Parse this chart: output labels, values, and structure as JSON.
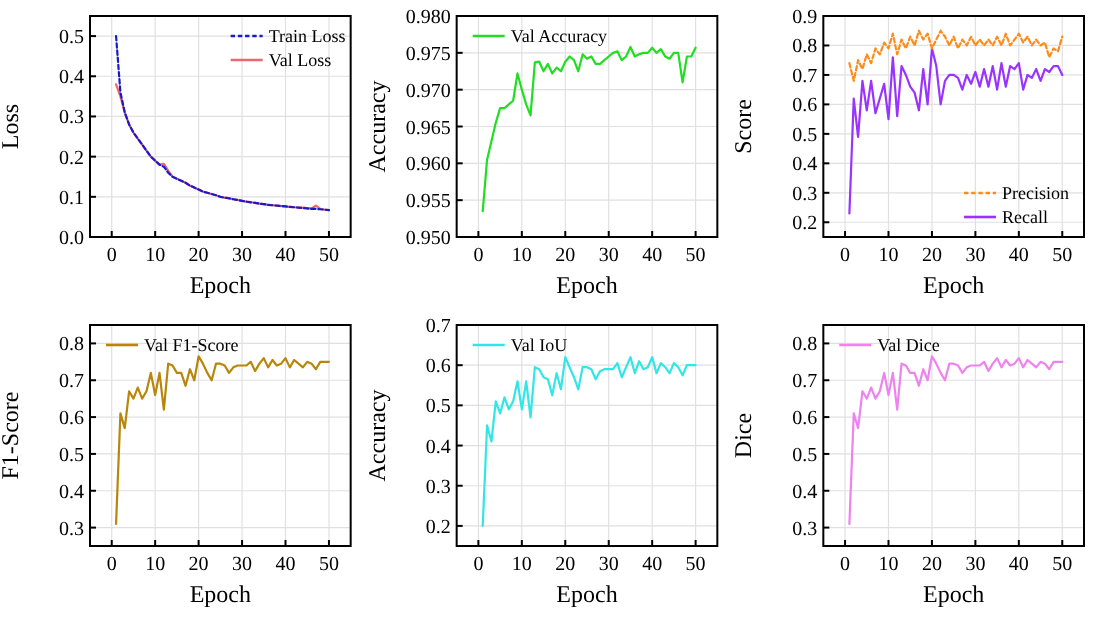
{
  "chart_data": [
    {
      "type": "line",
      "xlabel": "Epoch",
      "ylabel": "Loss",
      "x": [
        1,
        2,
        3,
        4,
        5,
        6,
        7,
        8,
        9,
        10,
        11,
        12,
        13,
        14,
        15,
        16,
        17,
        18,
        19,
        20,
        21,
        22,
        23,
        24,
        25,
        26,
        27,
        28,
        29,
        30,
        31,
        32,
        33,
        34,
        35,
        36,
        37,
        38,
        39,
        40,
        41,
        42,
        43,
        44,
        45,
        46,
        47,
        48,
        49,
        50
      ],
      "xlim": [
        -5,
        55
      ],
      "xticks": [
        0,
        10,
        20,
        30,
        40,
        50
      ],
      "ylim": [
        0,
        0.55
      ],
      "yticks": [
        {
          "value": 0,
          "label": "0.0"
        },
        0.1,
        0.2,
        0.3,
        0.4,
        0.5
      ],
      "grid": true,
      "legend": "top right",
      "series": [
        {
          "name": "Train Loss",
          "color": "#1a1acc",
          "line_style": "dashed",
          "values": [
            0.5,
            0.36,
            0.31,
            0.28,
            0.26,
            0.245,
            0.23,
            0.215,
            0.2,
            0.19,
            0.18,
            0.175,
            0.16,
            0.15,
            0.145,
            0.14,
            0.135,
            0.128,
            0.123,
            0.118,
            0.113,
            0.11,
            0.107,
            0.104,
            0.1,
            0.098,
            0.096,
            0.094,
            0.092,
            0.09,
            0.088,
            0.086,
            0.085,
            0.083,
            0.082,
            0.08,
            0.079,
            0.078,
            0.077,
            0.076,
            0.075,
            0.074,
            0.073,
            0.072,
            0.071,
            0.07,
            0.07,
            0.069,
            0.068,
            0.067
          ]
        },
        {
          "name": "Val Loss",
          "color": "#ee6670",
          "line_style": "solid",
          "values": [
            0.38,
            0.35,
            0.31,
            0.28,
            0.26,
            0.245,
            0.23,
            0.215,
            0.2,
            0.19,
            0.18,
            0.182,
            0.165,
            0.15,
            0.145,
            0.14,
            0.135,
            0.128,
            0.123,
            0.118,
            0.113,
            0.11,
            0.107,
            0.104,
            0.1,
            0.098,
            0.097,
            0.094,
            0.092,
            0.09,
            0.088,
            0.087,
            0.085,
            0.083,
            0.082,
            0.08,
            0.079,
            0.078,
            0.077,
            0.076,
            0.075,
            0.074,
            0.073,
            0.073,
            0.072,
            0.071,
            0.078,
            0.07,
            0.068,
            0.067
          ]
        }
      ]
    },
    {
      "type": "line",
      "xlabel": "Epoch",
      "ylabel": "Accuracy",
      "x": [
        1,
        2,
        3,
        4,
        5,
        6,
        7,
        8,
        9,
        10,
        11,
        12,
        13,
        14,
        15,
        16,
        17,
        18,
        19,
        20,
        21,
        22,
        23,
        24,
        25,
        26,
        27,
        28,
        29,
        30,
        31,
        32,
        33,
        34,
        35,
        36,
        37,
        38,
        39,
        40,
        41,
        42,
        43,
        44,
        45,
        46,
        47,
        48,
        49,
        50
      ],
      "xlim": [
        -5,
        55
      ],
      "xticks": [
        0,
        10,
        20,
        30,
        40,
        50
      ],
      "ylim": [
        0.95,
        0.98
      ],
      "yticks": [
        {
          "value": 0.95,
          "label": "0.950"
        },
        {
          "value": 0.955,
          "label": "0.955"
        },
        {
          "value": 0.96,
          "label": "0.960"
        },
        {
          "value": 0.965,
          "label": "0.965"
        },
        {
          "value": 0.97,
          "label": "0.970"
        },
        {
          "value": 0.975,
          "label": "0.975"
        },
        {
          "value": 0.98,
          "label": "0.980"
        }
      ],
      "grid": true,
      "legend": "top left",
      "series": [
        {
          "name": "Val Accuracy",
          "color": "#22dd22",
          "line_style": "solid",
          "values": [
            0.9535,
            0.9605,
            0.963,
            0.9655,
            0.9675,
            0.9675,
            0.968,
            0.9685,
            0.9722,
            0.97,
            0.968,
            0.9665,
            0.9737,
            0.9738,
            0.9725,
            0.9735,
            0.9722,
            0.973,
            0.9725,
            0.9738,
            0.9745,
            0.974,
            0.9725,
            0.9748,
            0.9742,
            0.9745,
            0.9735,
            0.9735,
            0.974,
            0.9745,
            0.975,
            0.9752,
            0.974,
            0.9745,
            0.9758,
            0.9745,
            0.9748,
            0.975,
            0.975,
            0.9757,
            0.975,
            0.9755,
            0.9745,
            0.9742,
            0.975,
            0.975,
            0.971,
            0.9745,
            0.9745,
            0.9757
          ]
        }
      ]
    },
    {
      "type": "line",
      "xlabel": "Epoch",
      "ylabel": "Score",
      "x": [
        1,
        2,
        3,
        4,
        5,
        6,
        7,
        8,
        9,
        10,
        11,
        12,
        13,
        14,
        15,
        16,
        17,
        18,
        19,
        20,
        21,
        22,
        23,
        24,
        25,
        26,
        27,
        28,
        29,
        30,
        31,
        32,
        33,
        34,
        35,
        36,
        37,
        38,
        39,
        40,
        41,
        42,
        43,
        44,
        45,
        46,
        47,
        48,
        49,
        50
      ],
      "xlim": [
        -5,
        55
      ],
      "xticks": [
        0,
        10,
        20,
        30,
        40,
        50
      ],
      "ylim": [
        0.15,
        0.9
      ],
      "yticks": [
        0.2,
        0.3,
        0.4,
        0.5,
        0.6,
        0.7,
        0.8,
        0.9
      ],
      "grid": true,
      "legend": "bottom right",
      "series": [
        {
          "name": "Precision",
          "color": "#ff8c1a",
          "line_style": "dashed",
          "values": [
            0.74,
            0.68,
            0.75,
            0.72,
            0.77,
            0.74,
            0.79,
            0.77,
            0.81,
            0.79,
            0.84,
            0.77,
            0.82,
            0.79,
            0.83,
            0.8,
            0.85,
            0.82,
            0.84,
            0.79,
            0.82,
            0.85,
            0.83,
            0.8,
            0.83,
            0.79,
            0.82,
            0.8,
            0.83,
            0.8,
            0.82,
            0.8,
            0.82,
            0.8,
            0.83,
            0.8,
            0.84,
            0.8,
            0.82,
            0.84,
            0.81,
            0.83,
            0.8,
            0.82,
            0.8,
            0.81,
            0.76,
            0.79,
            0.78,
            0.83
          ]
        },
        {
          "name": "Recall",
          "color": "#9933ff",
          "line_style": "solid",
          "values": [
            0.23,
            0.62,
            0.49,
            0.68,
            0.58,
            0.68,
            0.57,
            0.62,
            0.67,
            0.55,
            0.76,
            0.56,
            0.73,
            0.7,
            0.66,
            0.64,
            0.58,
            0.72,
            0.6,
            0.79,
            0.73,
            0.6,
            0.68,
            0.7,
            0.7,
            0.69,
            0.65,
            0.7,
            0.67,
            0.71,
            0.66,
            0.72,
            0.66,
            0.73,
            0.65,
            0.74,
            0.66,
            0.73,
            0.72,
            0.74,
            0.65,
            0.7,
            0.69,
            0.72,
            0.68,
            0.72,
            0.71,
            0.73,
            0.73,
            0.7
          ]
        }
      ]
    },
    {
      "type": "line",
      "xlabel": "Epoch",
      "ylabel": "F1-Score",
      "x": [
        1,
        2,
        3,
        4,
        5,
        6,
        7,
        8,
        9,
        10,
        11,
        12,
        13,
        14,
        15,
        16,
        17,
        18,
        19,
        20,
        21,
        22,
        23,
        24,
        25,
        26,
        27,
        28,
        29,
        30,
        31,
        32,
        33,
        34,
        35,
        36,
        37,
        38,
        39,
        40,
        41,
        42,
        43,
        44,
        45,
        46,
        47,
        48,
        49,
        50
      ],
      "xlim": [
        -5,
        55
      ],
      "xticks": [
        0,
        10,
        20,
        30,
        40,
        50
      ],
      "ylim": [
        0.25,
        0.85
      ],
      "yticks": [
        0.3,
        0.4,
        0.5,
        0.6,
        0.7,
        0.8
      ],
      "grid": true,
      "legend": "top left",
      "series": [
        {
          "name": "Val F1-Score",
          "color": "#b8860b",
          "line_style": "solid",
          "values": [
            0.31,
            0.61,
            0.57,
            0.67,
            0.65,
            0.68,
            0.65,
            0.67,
            0.72,
            0.66,
            0.72,
            0.62,
            0.745,
            0.74,
            0.72,
            0.72,
            0.685,
            0.73,
            0.7,
            0.765,
            0.745,
            0.72,
            0.7,
            0.745,
            0.745,
            0.74,
            0.72,
            0.735,
            0.74,
            0.74,
            0.74,
            0.75,
            0.725,
            0.745,
            0.76,
            0.735,
            0.755,
            0.74,
            0.745,
            0.76,
            0.735,
            0.755,
            0.745,
            0.735,
            0.75,
            0.745,
            0.73,
            0.75,
            0.75,
            0.75
          ]
        }
      ]
    },
    {
      "type": "line",
      "xlabel": "Epoch",
      "ylabel": "Accuracy",
      "x": [
        1,
        2,
        3,
        4,
        5,
        6,
        7,
        8,
        9,
        10,
        11,
        12,
        13,
        14,
        15,
        16,
        17,
        18,
        19,
        20,
        21,
        22,
        23,
        24,
        25,
        26,
        27,
        28,
        29,
        30,
        31,
        32,
        33,
        34,
        35,
        36,
        37,
        38,
        39,
        40,
        41,
        42,
        43,
        44,
        45,
        46,
        47,
        48,
        49,
        50
      ],
      "xlim": [
        -5,
        55
      ],
      "xticks": [
        0,
        10,
        20,
        30,
        40,
        50
      ],
      "ylim": [
        0.15,
        0.7
      ],
      "yticks": [
        0.2,
        0.3,
        0.4,
        0.5,
        0.6,
        0.7
      ],
      "grid": true,
      "legend": "top left",
      "series": [
        {
          "name": "Val IoU",
          "color": "#33e6e6",
          "line_style": "solid",
          "values": [
            0.2,
            0.45,
            0.41,
            0.51,
            0.48,
            0.52,
            0.49,
            0.51,
            0.56,
            0.49,
            0.56,
            0.47,
            0.595,
            0.59,
            0.57,
            0.565,
            0.525,
            0.58,
            0.54,
            0.62,
            0.595,
            0.57,
            0.54,
            0.595,
            0.595,
            0.59,
            0.565,
            0.585,
            0.59,
            0.59,
            0.59,
            0.605,
            0.57,
            0.595,
            0.62,
            0.58,
            0.61,
            0.59,
            0.595,
            0.62,
            0.58,
            0.605,
            0.595,
            0.58,
            0.605,
            0.595,
            0.575,
            0.6,
            0.6,
            0.6
          ]
        }
      ]
    },
    {
      "type": "line",
      "xlabel": "Epoch",
      "ylabel": "Dice",
      "x": [
        1,
        2,
        3,
        4,
        5,
        6,
        7,
        8,
        9,
        10,
        11,
        12,
        13,
        14,
        15,
        16,
        17,
        18,
        19,
        20,
        21,
        22,
        23,
        24,
        25,
        26,
        27,
        28,
        29,
        30,
        31,
        32,
        33,
        34,
        35,
        36,
        37,
        38,
        39,
        40,
        41,
        42,
        43,
        44,
        45,
        46,
        47,
        48,
        49,
        50
      ],
      "xlim": [
        -5,
        55
      ],
      "xticks": [
        0,
        10,
        20,
        30,
        40,
        50
      ],
      "ylim": [
        0.25,
        0.85
      ],
      "yticks": [
        0.3,
        0.4,
        0.5,
        0.6,
        0.7,
        0.8
      ],
      "grid": true,
      "legend": "top left",
      "series": [
        {
          "name": "Val Dice",
          "color": "#ee82ee",
          "line_style": "solid",
          "values": [
            0.31,
            0.61,
            0.57,
            0.67,
            0.65,
            0.68,
            0.65,
            0.67,
            0.72,
            0.66,
            0.72,
            0.62,
            0.745,
            0.74,
            0.72,
            0.72,
            0.685,
            0.73,
            0.7,
            0.765,
            0.745,
            0.72,
            0.7,
            0.745,
            0.745,
            0.74,
            0.72,
            0.735,
            0.74,
            0.74,
            0.74,
            0.75,
            0.725,
            0.745,
            0.76,
            0.735,
            0.755,
            0.74,
            0.745,
            0.76,
            0.735,
            0.755,
            0.745,
            0.735,
            0.75,
            0.745,
            0.73,
            0.75,
            0.75,
            0.75
          ]
        }
      ]
    }
  ]
}
